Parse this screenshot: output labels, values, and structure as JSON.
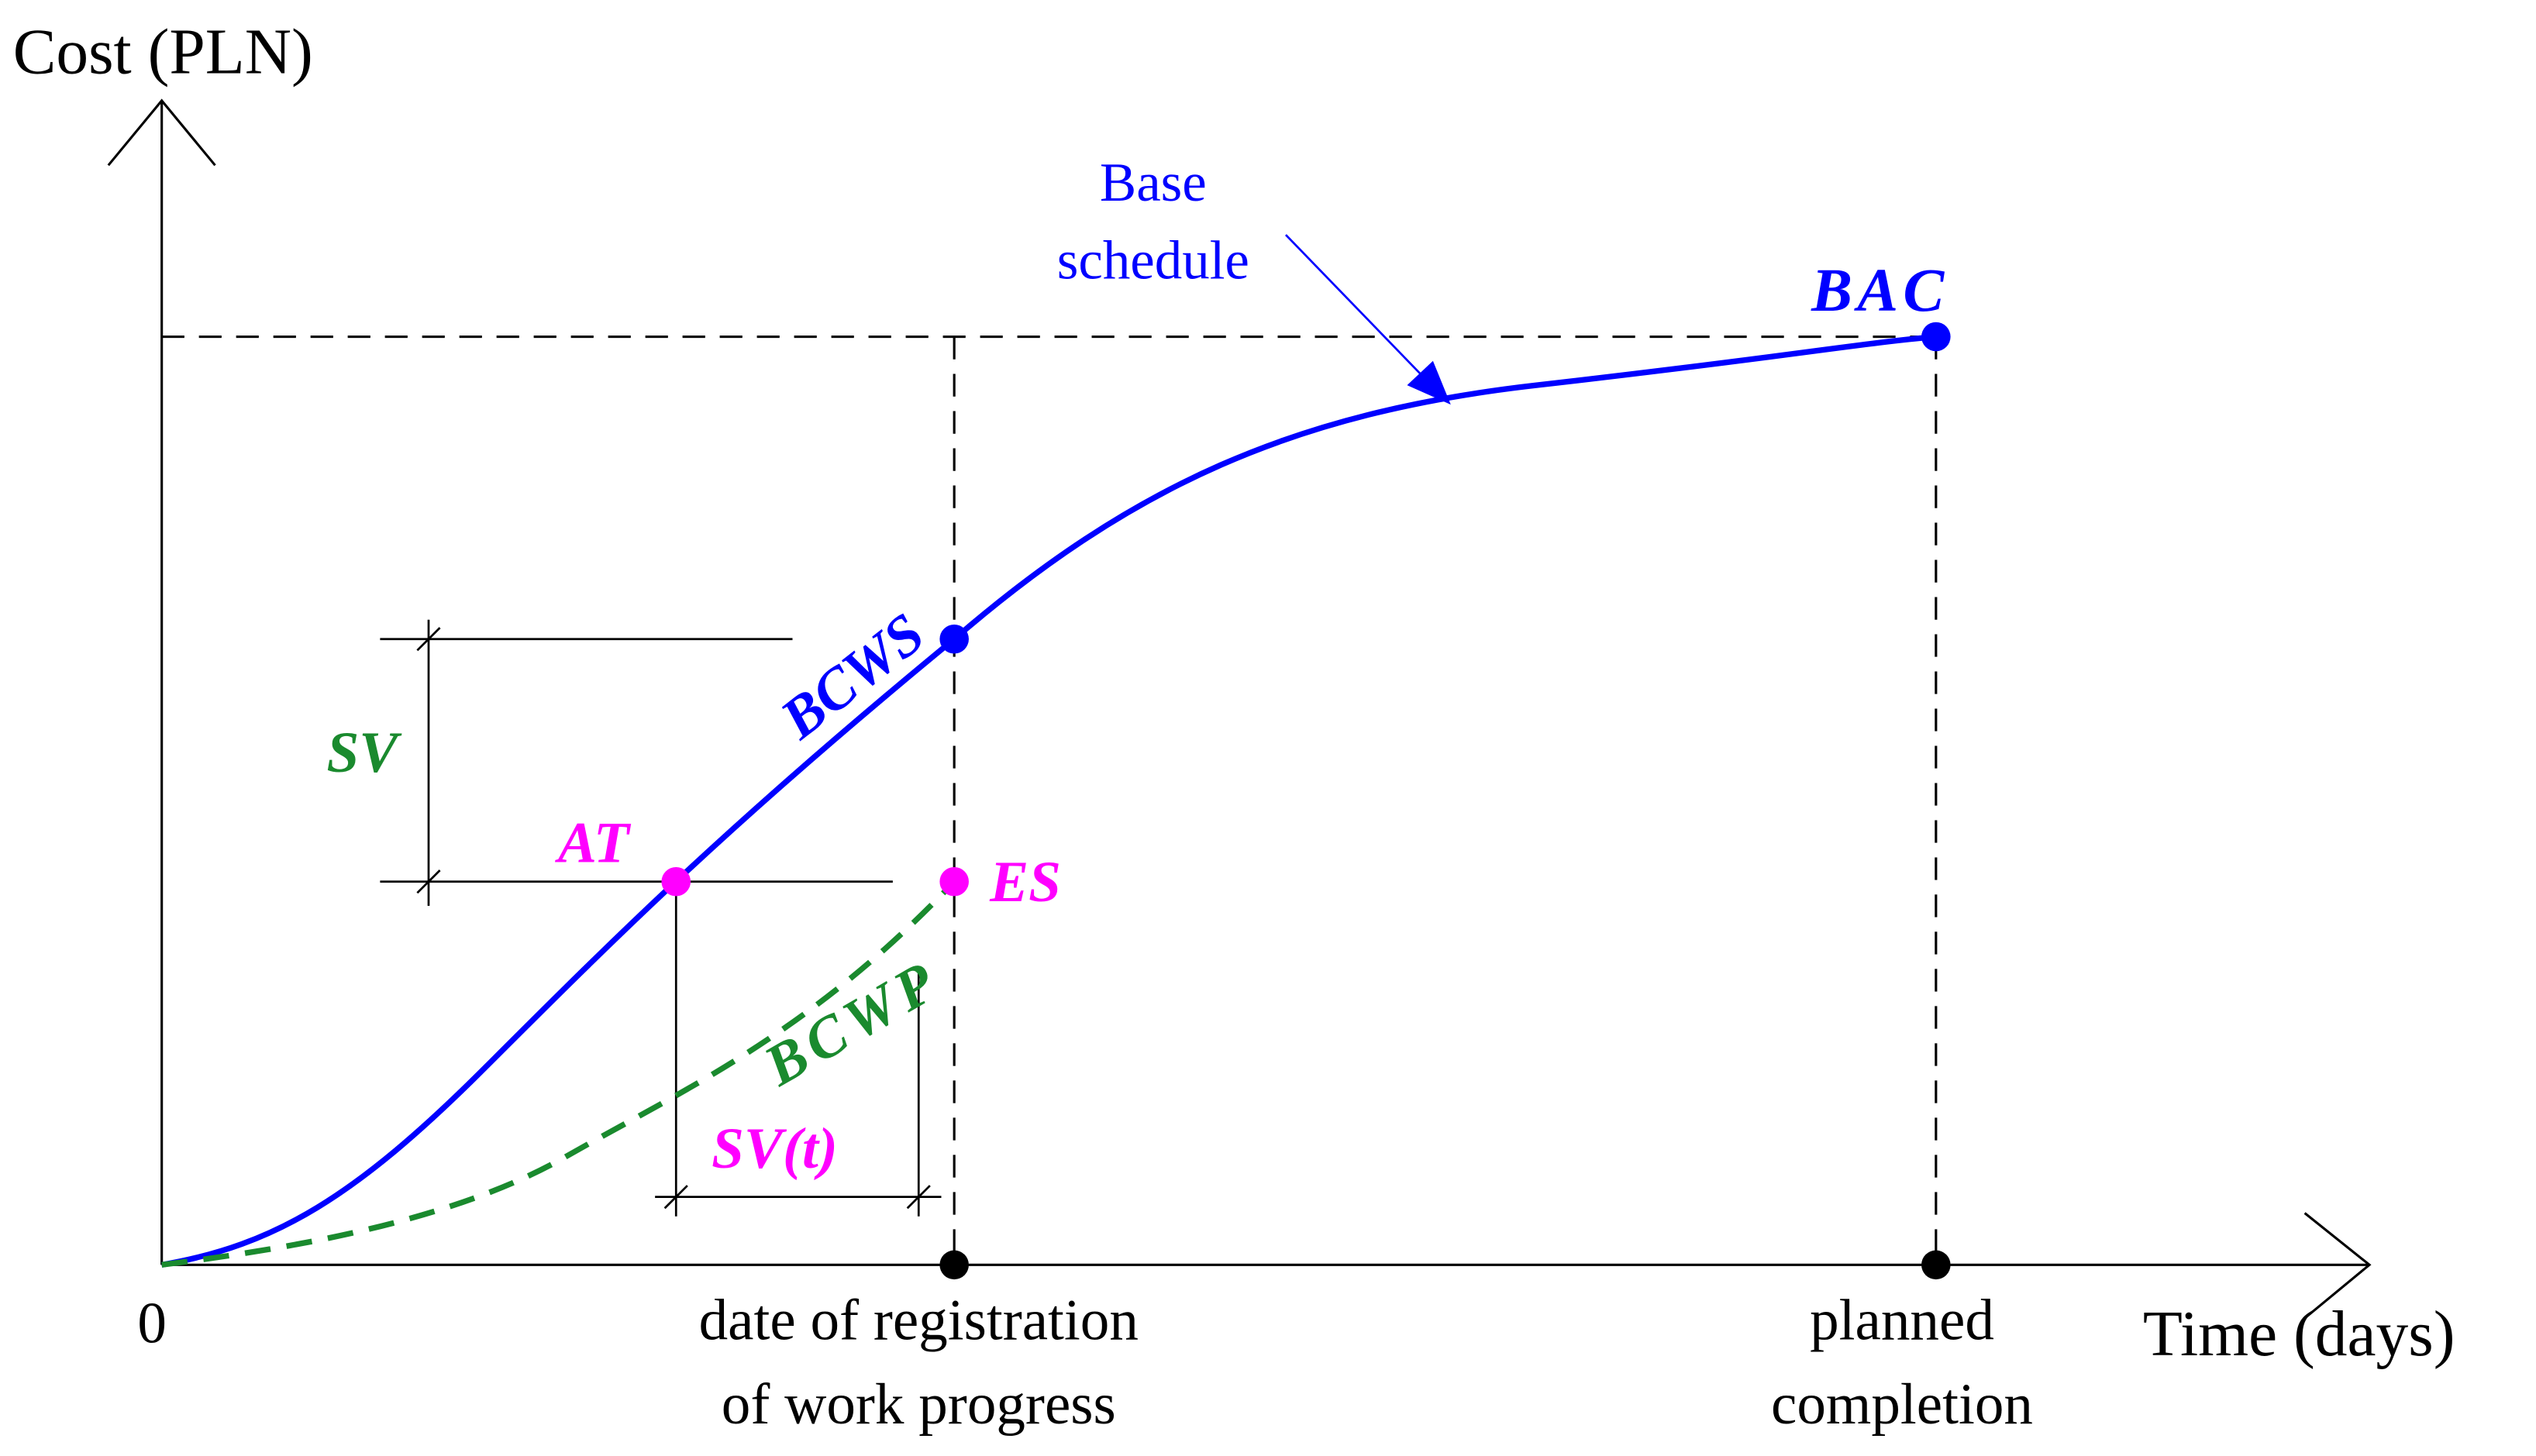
{
  "axes": {
    "y_label": "Cost (PLN)",
    "x_label": "Time (days)",
    "origin": "0"
  },
  "x_labels": {
    "registration": [
      "date of registration",
      "of work progress"
    ],
    "completion": [
      "planned",
      "completion"
    ]
  },
  "labels": {
    "base_schedule": [
      "Base",
      "schedule"
    ],
    "bac": "BAC",
    "bcws": "BCWS",
    "bcwp": "BCWP",
    "sv": "SV",
    "at": "AT",
    "es": "ES",
    "svt": "SV(t)"
  }
}
